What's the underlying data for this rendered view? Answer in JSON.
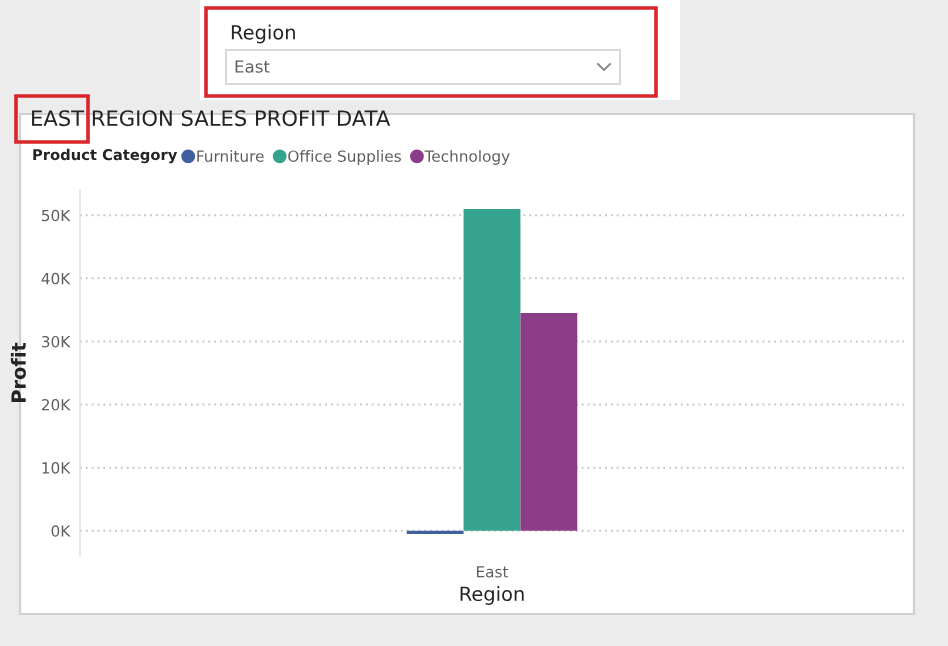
{
  "chart_data": {
    "type": "bar",
    "title": "EAST REGION SALES PROFIT DATA",
    "categories": [
      "East"
    ],
    "series": [
      {
        "name": "Furniture",
        "color": "#3f5fa0",
        "values": [
          -500
        ]
      },
      {
        "name": "Office Supplies",
        "color": "#35a38e",
        "values": [
          51000
        ]
      },
      {
        "name": "Technology",
        "color": "#8b3d88",
        "values": [
          34500
        ]
      }
    ],
    "xlabel": "Region",
    "ylabel": "Profit",
    "legend_title": "Product Category",
    "ylim": [
      -4000,
      54000
    ],
    "yticks": [
      {
        "value": 0,
        "label": "0K"
      },
      {
        "value": 10000,
        "label": "10K"
      },
      {
        "value": 20000,
        "label": "20K"
      },
      {
        "value": 30000,
        "label": "30K"
      },
      {
        "value": 40000,
        "label": "40K"
      },
      {
        "value": 50000,
        "label": "50K"
      }
    ],
    "grid": "y",
    "legend": "top left",
    "annotations": [
      "Region",
      "East"
    ]
  }
}
